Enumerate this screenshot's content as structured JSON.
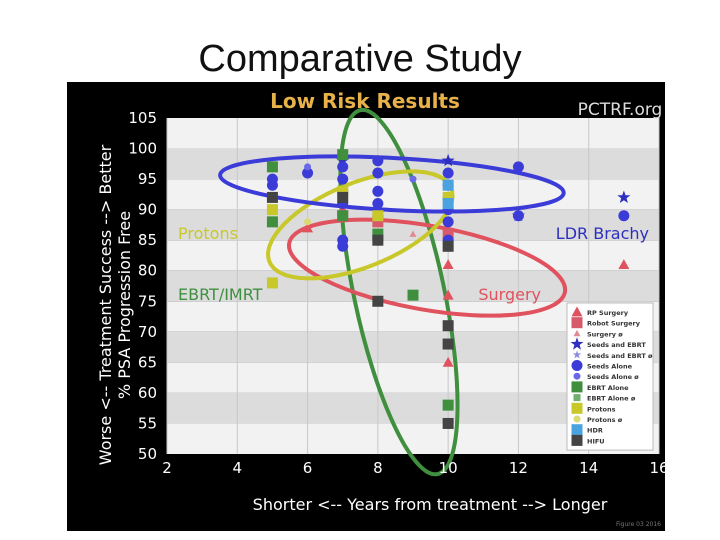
{
  "slide": {
    "title": "Comparative Study"
  },
  "figure": {
    "watermark": "PCTRF.org",
    "footer_credit": "Figure 03 2016"
  },
  "colors": {
    "background": "#000000",
    "plot_band_light": "#f2f2f2",
    "plot_band_dark": "#dcdcdc",
    "title": "#e8b24a",
    "seeds": "#3b3bd8",
    "surgery": "#e0525e",
    "ebrt": "#3f8f3f",
    "protons": "#c8c82a",
    "hdr": "#4aa3df",
    "hifu": "#444444"
  },
  "chart_data": {
    "type": "scatter",
    "title": "Low Risk Results",
    "xlabel": "Shorter <-- Years from treatment --> Longer",
    "ylabel": "Worse <-- Treatment Success --> Better",
    "ylabel2": "% PSA Progression Free",
    "xlim": [
      2,
      16
    ],
    "ylim": [
      50,
      105
    ],
    "xticks": [
      2,
      4,
      6,
      8,
      10,
      12,
      14,
      16
    ],
    "yticks": [
      50,
      55,
      60,
      65,
      70,
      75,
      80,
      85,
      90,
      95,
      100,
      105
    ],
    "grid": true,
    "legend_position": "right",
    "series": [
      {
        "name": "RP Surgery",
        "color": "#e0525e",
        "marker": "triangle",
        "points": [
          [
            6,
            87
          ],
          [
            7,
            90
          ],
          [
            8,
            88
          ],
          [
            10,
            85
          ],
          [
            10,
            81
          ],
          [
            10,
            76
          ],
          [
            10,
            65
          ],
          [
            15,
            81
          ]
        ]
      },
      {
        "name": "Robot Surgery",
        "color": "#d65a6a",
        "marker": "square",
        "points": [
          [
            7,
            89
          ],
          [
            8,
            88
          ],
          [
            10,
            86
          ]
        ]
      },
      {
        "name": "Surgery ø",
        "color": "#e08a95",
        "marker": "triangle-small",
        "points": [
          [
            9,
            86
          ]
        ]
      },
      {
        "name": "Seeds and EBRT",
        "color": "#2e2ec0",
        "marker": "star",
        "points": [
          [
            7,
            98
          ],
          [
            10,
            98
          ],
          [
            12,
            89
          ],
          [
            15,
            92
          ]
        ]
      },
      {
        "name": "Seeds and EBRT ø",
        "color": "#8a8ae0",
        "marker": "star-small",
        "points": [
          [
            8,
            96
          ]
        ]
      },
      {
        "name": "Seeds Alone",
        "color": "#3b3bd8",
        "marker": "circle",
        "points": [
          [
            5,
            95
          ],
          [
            5,
            94
          ],
          [
            6,
            96
          ],
          [
            7,
            97
          ],
          [
            7,
            95
          ],
          [
            7,
            93
          ],
          [
            7,
            91
          ],
          [
            7,
            85
          ],
          [
            7,
            84
          ],
          [
            8,
            98
          ],
          [
            8,
            96
          ],
          [
            8,
            93
          ],
          [
            8,
            91
          ],
          [
            8,
            89
          ],
          [
            8,
            85
          ],
          [
            10,
            96
          ],
          [
            10,
            94
          ],
          [
            10,
            92
          ],
          [
            10,
            90
          ],
          [
            10,
            88
          ],
          [
            10,
            85
          ],
          [
            12,
            97
          ],
          [
            12,
            89
          ],
          [
            15,
            89
          ]
        ]
      },
      {
        "name": "Seeds Alone ø",
        "color": "#6a6ae8",
        "marker": "circle-small",
        "points": [
          [
            6,
            97
          ],
          [
            9,
            95
          ]
        ]
      },
      {
        "name": "EBRT Alone",
        "color": "#3f8f3f",
        "marker": "square",
        "points": [
          [
            5,
            97
          ],
          [
            5,
            88
          ],
          [
            7,
            99
          ],
          [
            7,
            89
          ],
          [
            8,
            86
          ],
          [
            9,
            76
          ],
          [
            10,
            58
          ]
        ]
      },
      {
        "name": "EBRT Alone ø",
        "color": "#6fb06f",
        "marker": "square-small",
        "points": [
          [
            7,
            93
          ]
        ]
      },
      {
        "name": "Protons",
        "color": "#c8c82a",
        "marker": "square",
        "points": [
          [
            5,
            90
          ],
          [
            5,
            78
          ],
          [
            7,
            93
          ],
          [
            8,
            89
          ],
          [
            10,
            92
          ]
        ]
      },
      {
        "name": "Protons ø",
        "color": "#dada70",
        "marker": "circle-small",
        "points": [
          [
            6,
            88
          ]
        ]
      },
      {
        "name": "HDR",
        "color": "#4aa3df",
        "marker": "square",
        "points": [
          [
            10,
            94
          ],
          [
            10,
            91
          ]
        ]
      },
      {
        "name": "HIFU",
        "color": "#444444",
        "marker": "square",
        "points": [
          [
            5,
            92
          ],
          [
            7,
            92
          ],
          [
            8,
            85
          ],
          [
            8,
            75
          ],
          [
            10,
            84
          ],
          [
            10,
            71
          ],
          [
            10,
            68
          ],
          [
            10,
            55
          ]
        ]
      }
    ],
    "annotations": [
      {
        "label": "Protons",
        "color": "#c8c82a"
      },
      {
        "label": "LDR Brachy",
        "color": "#2e2ec0"
      },
      {
        "label": "EBRT/IMRT",
        "color": "#3f8f3f"
      },
      {
        "label": "Surgery",
        "color": "#e0525e"
      }
    ]
  }
}
